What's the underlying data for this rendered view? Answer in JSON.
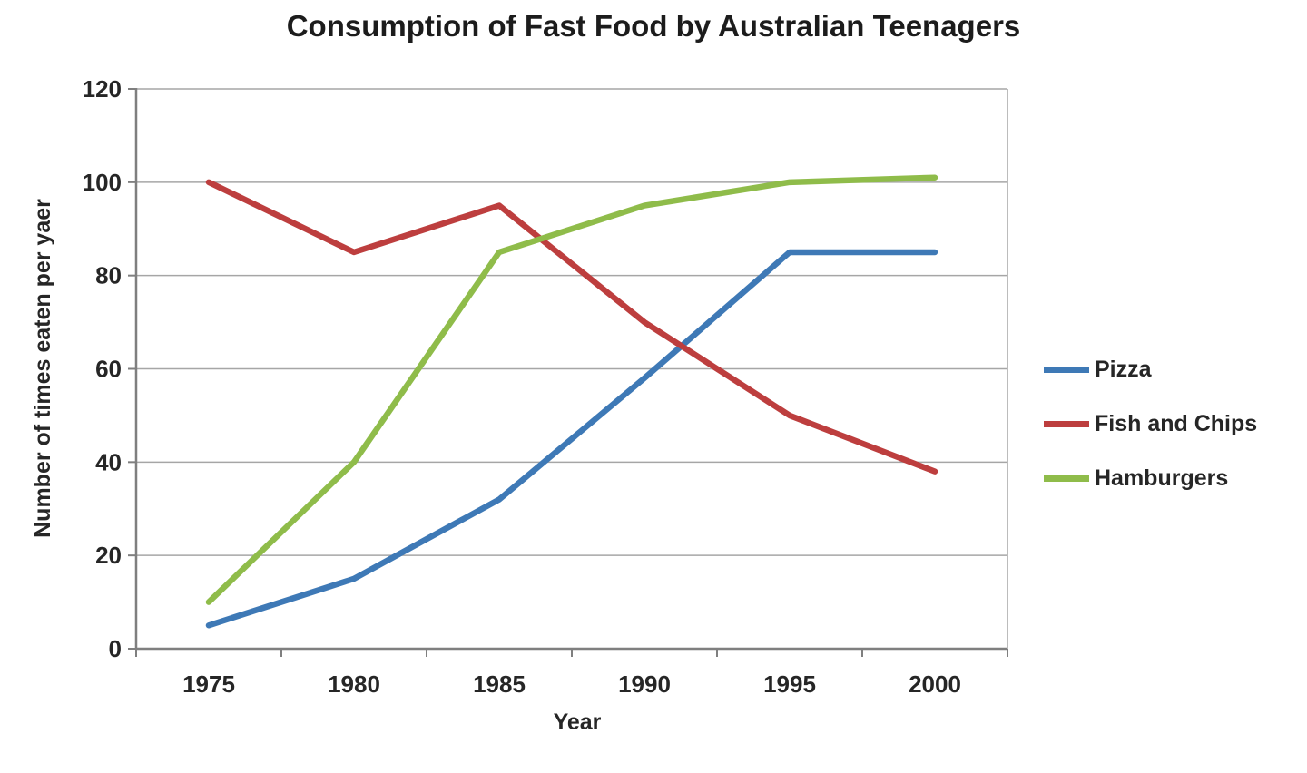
{
  "chart_data": {
    "type": "line",
    "title": "Consumption of Fast Food by Australian Teenagers",
    "xlabel": "Year",
    "ylabel": "Number of times eaten per yaer",
    "categories": [
      "1975",
      "1980",
      "1985",
      "1990",
      "1995",
      "2000"
    ],
    "y_ticks": [
      0,
      20,
      40,
      60,
      80,
      100,
      120
    ],
    "ylim": [
      0,
      120
    ],
    "grid": true,
    "legend_position": "right",
    "series": [
      {
        "name": "Pizza",
        "color": "#3e79b6",
        "values": [
          5,
          15,
          32,
          58,
          85,
          85
        ]
      },
      {
        "name": "Fish and Chips",
        "color": "#bd3e3e",
        "values": [
          100,
          85,
          95,
          70,
          50,
          38
        ]
      },
      {
        "name": "Hamburgers",
        "color": "#8fbc4a",
        "values": [
          10,
          40,
          85,
          95,
          100,
          101
        ]
      }
    ]
  },
  "style": {
    "grid_color": "#a6a6a6",
    "axis_color": "#7f7f7f",
    "title_color": "#1c1c1c",
    "label_color": "#262626"
  }
}
